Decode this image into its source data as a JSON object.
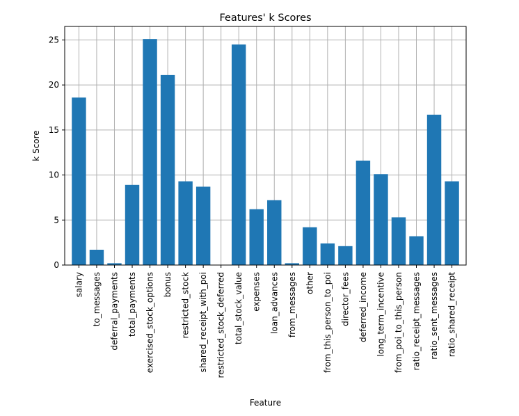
{
  "chart_data": {
    "type": "bar",
    "title": "Features' k Scores",
    "xlabel": "Feature",
    "ylabel": "k Score",
    "ylim": [
      0,
      26.5
    ],
    "yticks": [
      0,
      5,
      10,
      15,
      20,
      25
    ],
    "grid": true,
    "bar_color": "#1f77b4",
    "categories": [
      "salary",
      "to_messages",
      "deferral_payments",
      "total_payments",
      "exercised_stock_options",
      "bonus",
      "restricted_stock",
      "shared_receipt_with_poi",
      "restricted_stock_deferred",
      "total_stock_value",
      "expenses",
      "loan_advances",
      "from_messages",
      "other",
      "from_this_person_to_poi",
      "director_fees",
      "deferred_income",
      "long_term_incentive",
      "from_poi_to_this_person",
      "ratio_receipt_messages",
      "ratio_sent_messages",
      "ratio_shared_receipt"
    ],
    "values": [
      18.6,
      1.7,
      0.2,
      8.9,
      25.1,
      21.1,
      9.3,
      8.7,
      0.0,
      24.5,
      6.2,
      7.2,
      0.2,
      4.2,
      2.4,
      2.1,
      11.6,
      10.1,
      5.3,
      3.2,
      16.7,
      9.3
    ]
  }
}
